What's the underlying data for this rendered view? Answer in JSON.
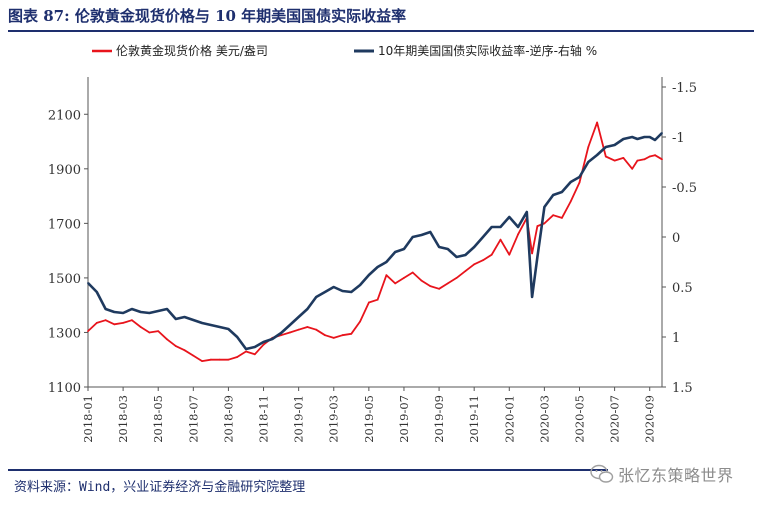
{
  "title": "图表 87: 伦敦黄金现货价格与 10 年期美国国债实际收益率",
  "source": "资料来源：Wind，兴业证券经济与金融研究院整理",
  "watermark": "张忆东策略世界",
  "colors": {
    "gold": "#e8141c",
    "yield": "#1f3a5f",
    "accent": "#1e2f6e"
  },
  "chart_data": {
    "type": "line",
    "title": "伦敦黄金现货价格与 10 年期美国国债实际收益率",
    "x_tick_labels": [
      "2018-01",
      "2018-03",
      "2018-05",
      "2018-07",
      "2018-09",
      "2018-11",
      "2019-01",
      "2019-03",
      "2019-05",
      "2019-07",
      "2019-09",
      "2019-11",
      "2020-01",
      "2020-03",
      "2020-05",
      "2020-07",
      "2020-09"
    ],
    "left_axis": {
      "ylim": [
        1100,
        2200
      ],
      "ticks": [
        "1100",
        "1300",
        "1500",
        "1700",
        "1900",
        "2100"
      ]
    },
    "right_axis": {
      "inverted": true,
      "ylim": [
        -1.5,
        1.5
      ],
      "ticks": [
        "-1.5",
        "-1",
        "-0.5",
        "0",
        "0.5",
        "1",
        "1.5"
      ]
    },
    "series": [
      {
        "name": "伦敦黄金现货价格 美元/盎司",
        "axis": "left",
        "x": [
          0,
          0.5,
          1,
          1.5,
          2,
          2.5,
          3,
          3.5,
          4,
          4.5,
          5,
          5.5,
          6,
          6.5,
          7,
          7.5,
          8,
          8.5,
          9,
          9.5,
          10,
          10.5,
          11,
          11.5,
          12,
          12.5,
          13,
          13.5,
          14,
          14.5,
          15,
          15.5,
          16,
          16.5,
          17,
          17.5,
          18,
          18.5,
          19,
          19.5,
          20,
          20.5,
          21,
          21.5,
          22,
          22.5,
          23,
          23.5,
          24,
          24.5,
          25,
          25.3,
          25.6,
          26,
          26.5,
          27,
          27.5,
          28,
          28.5,
          29,
          29.5,
          30,
          30.5,
          31,
          31.3,
          31.7,
          32,
          32.3,
          32.7
        ],
        "values": [
          1305,
          1335,
          1345,
          1330,
          1335,
          1345,
          1320,
          1300,
          1305,
          1275,
          1250,
          1235,
          1215,
          1195,
          1200,
          1200,
          1200,
          1210,
          1230,
          1220,
          1255,
          1280,
          1290,
          1300,
          1310,
          1320,
          1310,
          1290,
          1280,
          1290,
          1295,
          1340,
          1410,
          1420,
          1510,
          1480,
          1500,
          1520,
          1490,
          1470,
          1460,
          1480,
          1500,
          1525,
          1550,
          1565,
          1585,
          1640,
          1585,
          1660,
          1720,
          1590,
          1690,
          1700,
          1730,
          1720,
          1780,
          1850,
          1980,
          2070,
          1945,
          1930,
          1940,
          1900,
          1930,
          1935,
          1945,
          1950,
          1935
        ]
      },
      {
        "name": "10年期美国国债实际收益率-逆序-右轴 %",
        "axis": "right",
        "x": [
          0,
          0.5,
          1,
          1.5,
          2,
          2.5,
          3,
          3.5,
          4,
          4.5,
          5,
          5.5,
          6,
          6.5,
          7,
          7.5,
          8,
          8.5,
          9,
          9.5,
          10,
          10.5,
          11,
          11.5,
          12,
          12.5,
          13,
          13.5,
          14,
          14.5,
          15,
          15.5,
          16,
          16.5,
          17,
          17.5,
          18,
          18.5,
          19,
          19.5,
          20,
          20.5,
          21,
          21.5,
          22,
          22.5,
          23,
          23.5,
          24,
          24.5,
          25,
          25.3,
          25.6,
          26,
          26.5,
          27,
          27.5,
          28,
          28.5,
          29,
          29.5,
          30,
          30.5,
          31,
          31.3,
          31.7,
          32,
          32.3,
          32.7
        ],
        "values": [
          0.46,
          0.55,
          0.72,
          0.75,
          0.76,
          0.72,
          0.75,
          0.76,
          0.74,
          0.72,
          0.82,
          0.8,
          0.83,
          0.86,
          0.88,
          0.9,
          0.92,
          1,
          1.12,
          1.1,
          1.05,
          1.02,
          0.96,
          0.88,
          0.8,
          0.72,
          0.6,
          0.55,
          0.5,
          0.54,
          0.55,
          0.48,
          0.38,
          0.3,
          0.25,
          0.15,
          0.12,
          0,
          -0.02,
          -0.05,
          0.1,
          0.12,
          0.2,
          0.18,
          0.1,
          0,
          -0.1,
          -0.1,
          -0.2,
          -0.1,
          -0.25,
          0.6,
          0.2,
          -0.3,
          -0.42,
          -0.45,
          -0.55,
          -0.6,
          -0.75,
          -0.82,
          -0.9,
          -0.92,
          -0.98,
          -1,
          -0.98,
          -1,
          -1,
          -0.97,
          -1.04
        ]
      }
    ]
  }
}
